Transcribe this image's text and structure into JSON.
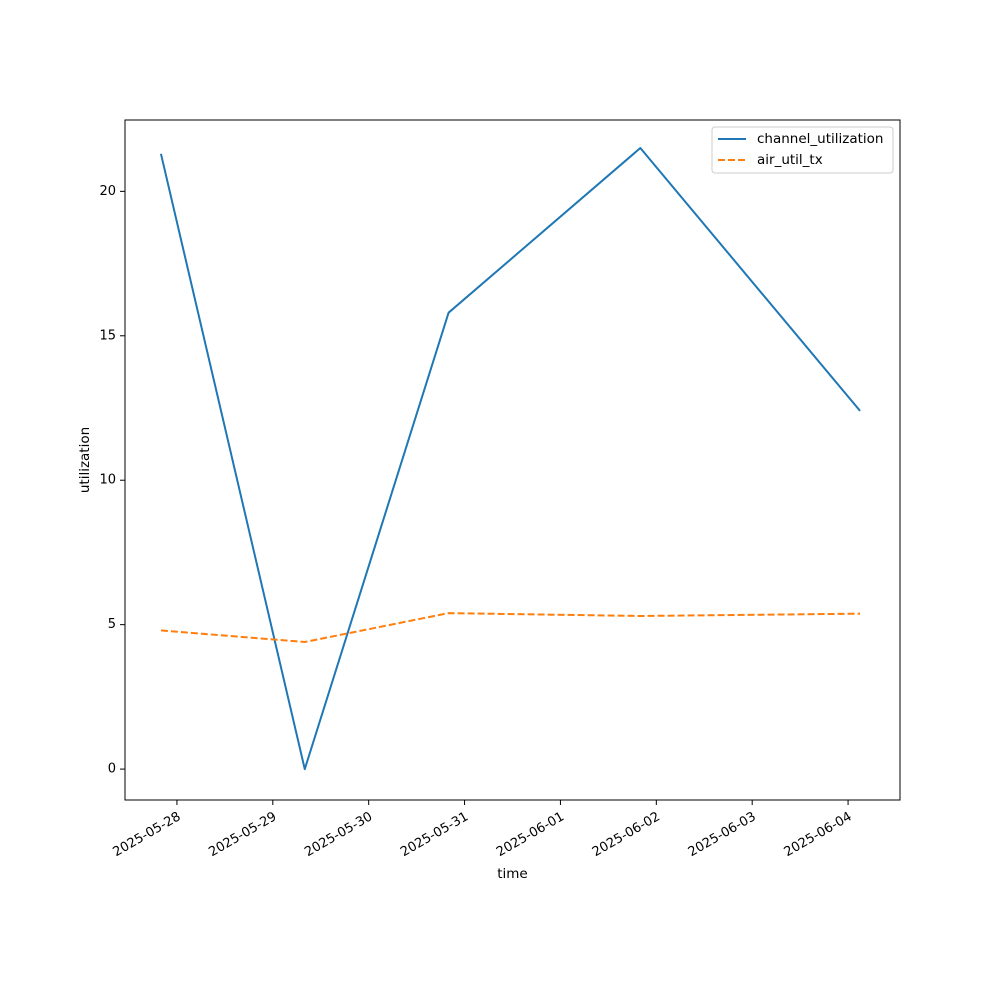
{
  "chart_data": {
    "type": "line",
    "title": "",
    "xlabel": "time",
    "ylabel": "utilization",
    "x_tick_labels": [
      "2025-05-28",
      "2025-05-29",
      "2025-05-30",
      "2025-05-31",
      "2025-06-01",
      "2025-06-02",
      "2025-06-03",
      "2025-06-04"
    ],
    "y_tick_values": [
      0,
      5,
      10,
      15,
      20
    ],
    "xlim": [
      "2025-05-27 11:00",
      "2025-06-04 13:00"
    ],
    "ylim": [
      -1.07,
      22.47
    ],
    "grid": false,
    "legend_position": "top-right",
    "x": [
      "2025-05-27 20:00",
      "2025-05-29 08:00",
      "2025-05-30 20:00",
      "2025-06-01 20:00",
      "2025-06-04 03:00"
    ],
    "series": [
      {
        "name": "channel_utilization",
        "color": "#1f77b4",
        "dash": "solid",
        "values": [
          21.3,
          0.0,
          15.8,
          21.5,
          12.4
        ]
      },
      {
        "name": "air_util_tx",
        "color": "#ff7f0e",
        "dash": "dashed",
        "values": [
          4.8,
          4.4,
          5.4,
          5.3,
          5.38
        ]
      }
    ]
  }
}
